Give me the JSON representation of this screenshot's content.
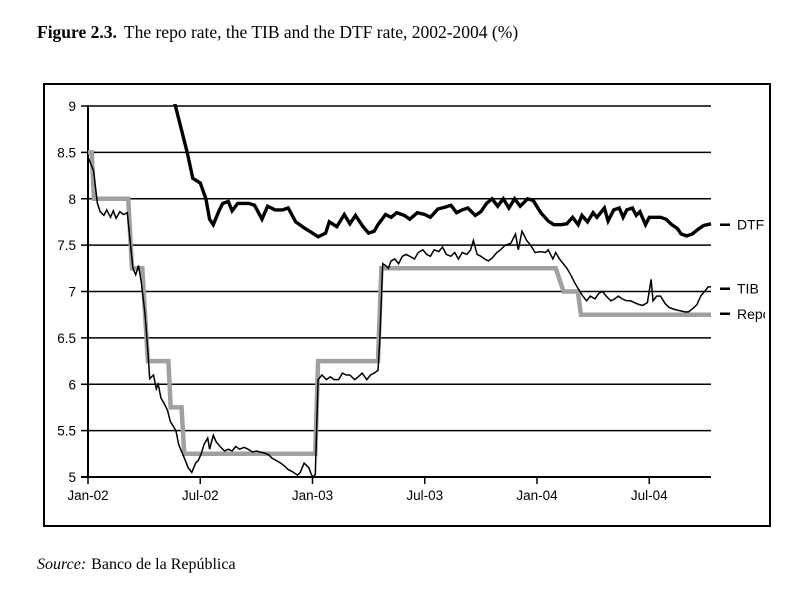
{
  "figure": {
    "label": "Figure 2.3.",
    "title": "The repo rate, the TIB and the DTF rate, 2002-2004 (%)",
    "source_label": "Source:",
    "source_text": "Banco de la República"
  },
  "chart_data": {
    "type": "line",
    "title": "The repo rate, the TIB and the DTF rate, 2002-2004 (%)",
    "grid": true,
    "x_axis": {
      "range_months": [
        0,
        33.3
      ],
      "tick_months": [
        0,
        6,
        12,
        18,
        24,
        30
      ],
      "tick_labels": [
        "Jan-02",
        "Jul-02",
        "Jan-03",
        "Jul-03",
        "Jan-04",
        "Jul-04"
      ]
    },
    "y_axis": {
      "min": 5,
      "max": 9,
      "step": 0.5,
      "tick_values": [
        9,
        8.5,
        8,
        7.5,
        7,
        6.5,
        6,
        5.5,
        5
      ],
      "tick_labels": [
        "9",
        "8.5",
        "8",
        "7.5",
        "7",
        "6.5",
        "6",
        "5.5",
        "5"
      ]
    },
    "colors": {
      "black": "#000000",
      "gray": "#a0a0a0"
    },
    "series": [
      {
        "name": "Repo",
        "color": "#a0a0a0",
        "width": 4.5,
        "points": [
          [
            0,
            8.5
          ],
          [
            0.2,
            8.5
          ],
          [
            0.32,
            8.0
          ],
          [
            2.15,
            8.0
          ],
          [
            2.35,
            7.25
          ],
          [
            2.9,
            7.25
          ],
          [
            3.2,
            6.25
          ],
          [
            4.3,
            6.25
          ],
          [
            4.42,
            5.75
          ],
          [
            5.0,
            5.75
          ],
          [
            5.15,
            5.25
          ],
          [
            12.15,
            5.25
          ],
          [
            12.3,
            6.25
          ],
          [
            15.5,
            6.25
          ],
          [
            15.68,
            7.25
          ],
          [
            25.0,
            7.25
          ],
          [
            25.42,
            7.0
          ],
          [
            26.18,
            7.0
          ],
          [
            26.35,
            6.75
          ],
          [
            33.3,
            6.75
          ]
        ]
      },
      {
        "name": "DTF",
        "color": "#000000",
        "width": 3.4,
        "points": [
          [
            4.3,
            9.3
          ],
          [
            5.3,
            8.5
          ],
          [
            5.6,
            8.22
          ],
          [
            6.0,
            8.17
          ],
          [
            6.3,
            8.0
          ],
          [
            6.5,
            7.78
          ],
          [
            6.7,
            7.72
          ],
          [
            7.0,
            7.87
          ],
          [
            7.2,
            7.95
          ],
          [
            7.5,
            7.97
          ],
          [
            7.7,
            7.87
          ],
          [
            8.0,
            7.95
          ],
          [
            8.6,
            7.95
          ],
          [
            8.9,
            7.93
          ],
          [
            9.3,
            7.78
          ],
          [
            9.6,
            7.92
          ],
          [
            10.0,
            7.88
          ],
          [
            10.4,
            7.88
          ],
          [
            10.7,
            7.9
          ],
          [
            11.1,
            7.75
          ],
          [
            11.6,
            7.68
          ],
          [
            12.0,
            7.63
          ],
          [
            12.3,
            7.59
          ],
          [
            12.7,
            7.63
          ],
          [
            12.9,
            7.75
          ],
          [
            13.3,
            7.7
          ],
          [
            13.7,
            7.83
          ],
          [
            14.0,
            7.73
          ],
          [
            14.3,
            7.82
          ],
          [
            14.7,
            7.7
          ],
          [
            15.0,
            7.63
          ],
          [
            15.3,
            7.65
          ],
          [
            15.5,
            7.72
          ],
          [
            15.9,
            7.83
          ],
          [
            16.2,
            7.8
          ],
          [
            16.5,
            7.85
          ],
          [
            16.9,
            7.82
          ],
          [
            17.2,
            7.78
          ],
          [
            17.6,
            7.85
          ],
          [
            18.0,
            7.83
          ],
          [
            18.3,
            7.8
          ],
          [
            18.7,
            7.89
          ],
          [
            19.1,
            7.91
          ],
          [
            19.4,
            7.93
          ],
          [
            19.7,
            7.85
          ],
          [
            20.0,
            7.88
          ],
          [
            20.3,
            7.9
          ],
          [
            20.7,
            7.82
          ],
          [
            21.0,
            7.86
          ],
          [
            21.3,
            7.95
          ],
          [
            21.6,
            8.0
          ],
          [
            21.9,
            7.92
          ],
          [
            22.2,
            8.0
          ],
          [
            22.5,
            7.9
          ],
          [
            22.8,
            8.0
          ],
          [
            23.1,
            7.92
          ],
          [
            23.5,
            8.0
          ],
          [
            23.8,
            7.98
          ],
          [
            24.2,
            7.85
          ],
          [
            24.6,
            7.76
          ],
          [
            24.9,
            7.72
          ],
          [
            25.3,
            7.72
          ],
          [
            25.6,
            7.73
          ],
          [
            25.9,
            7.8
          ],
          [
            26.2,
            7.72
          ],
          [
            26.4,
            7.82
          ],
          [
            26.7,
            7.75
          ],
          [
            27.0,
            7.85
          ],
          [
            27.2,
            7.8
          ],
          [
            27.6,
            7.9
          ],
          [
            27.8,
            7.76
          ],
          [
            28.1,
            7.88
          ],
          [
            28.4,
            7.9
          ],
          [
            28.6,
            7.8
          ],
          [
            28.8,
            7.88
          ],
          [
            29.1,
            7.9
          ],
          [
            29.3,
            7.82
          ],
          [
            29.5,
            7.86
          ],
          [
            29.8,
            7.72
          ],
          [
            30.0,
            7.8
          ],
          [
            30.3,
            7.8
          ],
          [
            30.6,
            7.8
          ],
          [
            30.9,
            7.78
          ],
          [
            31.2,
            7.72
          ],
          [
            31.5,
            7.68
          ],
          [
            31.7,
            7.62
          ],
          [
            32.0,
            7.6
          ],
          [
            32.3,
            7.62
          ],
          [
            32.6,
            7.67
          ],
          [
            32.9,
            7.71
          ],
          [
            33.3,
            7.73
          ]
        ]
      },
      {
        "name": "TIB",
        "color": "#000000",
        "width": 1.5,
        "points": [
          [
            0,
            8.45
          ],
          [
            0.3,
            8.3
          ],
          [
            0.5,
            7.95
          ],
          [
            0.65,
            7.86
          ],
          [
            0.85,
            7.82
          ],
          [
            1.0,
            7.88
          ],
          [
            1.2,
            7.8
          ],
          [
            1.35,
            7.87
          ],
          [
            1.5,
            7.79
          ],
          [
            1.7,
            7.86
          ],
          [
            1.9,
            7.83
          ],
          [
            2.1,
            7.85
          ],
          [
            2.25,
            7.55
          ],
          [
            2.4,
            7.25
          ],
          [
            2.55,
            7.18
          ],
          [
            2.7,
            7.28
          ],
          [
            2.85,
            7.1
          ],
          [
            3.05,
            6.75
          ],
          [
            3.2,
            6.35
          ],
          [
            3.3,
            6.06
          ],
          [
            3.5,
            6.1
          ],
          [
            3.65,
            5.95
          ],
          [
            3.75,
            6.0
          ],
          [
            3.9,
            5.85
          ],
          [
            4.05,
            5.8
          ],
          [
            4.25,
            5.72
          ],
          [
            4.4,
            5.6
          ],
          [
            4.55,
            5.55
          ],
          [
            4.7,
            5.5
          ],
          [
            4.85,
            5.35
          ],
          [
            5.05,
            5.25
          ],
          [
            5.2,
            5.18
          ],
          [
            5.35,
            5.1
          ],
          [
            5.55,
            5.05
          ],
          [
            5.75,
            5.15
          ],
          [
            5.9,
            5.18
          ],
          [
            6.05,
            5.25
          ],
          [
            6.2,
            5.35
          ],
          [
            6.4,
            5.42
          ],
          [
            6.5,
            5.3
          ],
          [
            6.7,
            5.45
          ],
          [
            6.85,
            5.38
          ],
          [
            7.1,
            5.32
          ],
          [
            7.3,
            5.28
          ],
          [
            7.5,
            5.3
          ],
          [
            7.7,
            5.28
          ],
          [
            7.9,
            5.33
          ],
          [
            8.1,
            5.3
          ],
          [
            8.35,
            5.32
          ],
          [
            8.55,
            5.3
          ],
          [
            8.8,
            5.27
          ],
          [
            9.0,
            5.28
          ],
          [
            9.2,
            5.27
          ],
          [
            9.4,
            5.26
          ],
          [
            9.65,
            5.24
          ],
          [
            9.85,
            5.2
          ],
          [
            10.05,
            5.18
          ],
          [
            10.3,
            5.15
          ],
          [
            10.5,
            5.12
          ],
          [
            10.7,
            5.08
          ],
          [
            10.9,
            5.06
          ],
          [
            11.2,
            5.02
          ],
          [
            11.35,
            5.05
          ],
          [
            11.55,
            5.15
          ],
          [
            11.8,
            5.1
          ],
          [
            11.95,
            5.02
          ],
          [
            12.05,
            5.0
          ],
          [
            12.15,
            5.03
          ],
          [
            12.3,
            6.05
          ],
          [
            12.5,
            6.1
          ],
          [
            12.75,
            6.05
          ],
          [
            12.95,
            6.08
          ],
          [
            13.15,
            6.05
          ],
          [
            13.4,
            6.05
          ],
          [
            13.6,
            6.12
          ],
          [
            13.8,
            6.1
          ],
          [
            14.0,
            6.1
          ],
          [
            14.25,
            6.05
          ],
          [
            14.45,
            6.08
          ],
          [
            14.65,
            6.12
          ],
          [
            14.9,
            6.05
          ],
          [
            15.1,
            6.1
          ],
          [
            15.3,
            6.12
          ],
          [
            15.5,
            6.15
          ],
          [
            15.6,
            6.5
          ],
          [
            15.75,
            7.3
          ],
          [
            15.9,
            7.28
          ],
          [
            16.05,
            7.25
          ],
          [
            16.2,
            7.33
          ],
          [
            16.4,
            7.35
          ],
          [
            16.6,
            7.3
          ],
          [
            16.8,
            7.38
          ],
          [
            17.0,
            7.4
          ],
          [
            17.2,
            7.38
          ],
          [
            17.45,
            7.35
          ],
          [
            17.65,
            7.42
          ],
          [
            17.9,
            7.45
          ],
          [
            18.1,
            7.4
          ],
          [
            18.3,
            7.38
          ],
          [
            18.5,
            7.45
          ],
          [
            18.75,
            7.43
          ],
          [
            18.95,
            7.48
          ],
          [
            19.15,
            7.4
          ],
          [
            19.4,
            7.38
          ],
          [
            19.6,
            7.42
          ],
          [
            19.8,
            7.35
          ],
          [
            20.0,
            7.42
          ],
          [
            20.25,
            7.4
          ],
          [
            20.45,
            7.45
          ],
          [
            20.6,
            7.55
          ],
          [
            20.8,
            7.4
          ],
          [
            21.0,
            7.38
          ],
          [
            21.2,
            7.35
          ],
          [
            21.4,
            7.33
          ],
          [
            21.6,
            7.36
          ],
          [
            21.85,
            7.42
          ],
          [
            22.05,
            7.45
          ],
          [
            22.3,
            7.5
          ],
          [
            22.6,
            7.52
          ],
          [
            22.85,
            7.62
          ],
          [
            23.0,
            7.45
          ],
          [
            23.2,
            7.65
          ],
          [
            23.45,
            7.55
          ],
          [
            23.65,
            7.5
          ],
          [
            23.9,
            7.42
          ],
          [
            24.2,
            7.43
          ],
          [
            24.45,
            7.42
          ],
          [
            24.6,
            7.45
          ],
          [
            24.85,
            7.35
          ],
          [
            25.0,
            7.42
          ],
          [
            25.2,
            7.35
          ],
          [
            25.4,
            7.3
          ],
          [
            25.6,
            7.25
          ],
          [
            25.8,
            7.18
          ],
          [
            26.0,
            7.1
          ],
          [
            26.2,
            7.03
          ],
          [
            26.45,
            6.95
          ],
          [
            26.65,
            6.9
          ],
          [
            26.85,
            6.95
          ],
          [
            27.1,
            6.92
          ],
          [
            27.3,
            6.98
          ],
          [
            27.5,
            7.0
          ],
          [
            27.7,
            6.95
          ],
          [
            27.95,
            6.9
          ],
          [
            28.15,
            6.92
          ],
          [
            28.35,
            6.95
          ],
          [
            28.55,
            6.92
          ],
          [
            28.8,
            6.9
          ],
          [
            29.0,
            6.9
          ],
          [
            29.2,
            6.88
          ],
          [
            29.45,
            6.86
          ],
          [
            29.65,
            6.85
          ],
          [
            29.9,
            6.88
          ],
          [
            30.1,
            7.13
          ],
          [
            30.2,
            6.9
          ],
          [
            30.4,
            6.95
          ],
          [
            30.6,
            6.95
          ],
          [
            30.85,
            6.87
          ],
          [
            31.05,
            6.83
          ],
          [
            31.3,
            6.81
          ],
          [
            31.5,
            6.8
          ],
          [
            31.7,
            6.79
          ],
          [
            31.9,
            6.78
          ],
          [
            32.1,
            6.78
          ],
          [
            32.35,
            6.82
          ],
          [
            32.55,
            6.86
          ],
          [
            32.75,
            6.95
          ],
          [
            32.95,
            7.0
          ],
          [
            33.15,
            7.05
          ],
          [
            33.3,
            7.05
          ]
        ]
      }
    ],
    "right_labels": [
      {
        "text": "DTF",
        "value": 7.72
      },
      {
        "text": "TIB",
        "value": 7.03
      },
      {
        "text": "Repo",
        "value": 6.76
      }
    ]
  }
}
